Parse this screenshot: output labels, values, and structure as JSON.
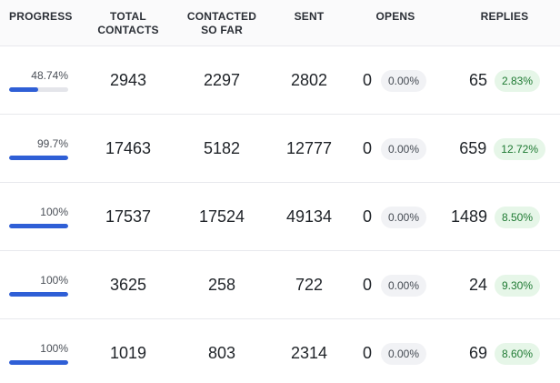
{
  "header": {
    "progress": "PROGRESS",
    "total_line1": "TOTAL",
    "total_line2": "CONTACTS",
    "contacted_line1": "CONTACTED",
    "contacted_line2": "SO FAR",
    "sent": "SENT",
    "opens": "OPENS",
    "replies": "REPLIES"
  },
  "colors": {
    "progress_fill": "#2f5fd6",
    "progress_track": "#e4e5ea",
    "reply_badge_bg": "#e6f6e8",
    "reply_badge_text": "#1f7a33",
    "open_badge_bg": "#f1f2f5"
  },
  "rows": [
    {
      "progress_text": "48.74%",
      "progress_value": 48.74,
      "total": "2943",
      "contacted": "2297",
      "sent": "2802",
      "opens": "0",
      "opens_pct": "0.00%",
      "replies": "65",
      "replies_pct": "2.83%"
    },
    {
      "progress_text": "99.7%",
      "progress_value": 99.7,
      "total": "17463",
      "contacted": "5182",
      "sent": "12777",
      "opens": "0",
      "opens_pct": "0.00%",
      "replies": "659",
      "replies_pct": "12.72%"
    },
    {
      "progress_text": "100%",
      "progress_value": 100,
      "total": "17537",
      "contacted": "17524",
      "sent": "49134",
      "opens": "0",
      "opens_pct": "0.00%",
      "replies": "1489",
      "replies_pct": "8.50%"
    },
    {
      "progress_text": "100%",
      "progress_value": 100,
      "total": "3625",
      "contacted": "258",
      "sent": "722",
      "opens": "0",
      "opens_pct": "0.00%",
      "replies": "24",
      "replies_pct": "9.30%"
    },
    {
      "progress_text": "100%",
      "progress_value": 100,
      "total": "1019",
      "contacted": "803",
      "sent": "2314",
      "opens": "0",
      "opens_pct": "0.00%",
      "replies": "69",
      "replies_pct": "8.60%"
    }
  ]
}
